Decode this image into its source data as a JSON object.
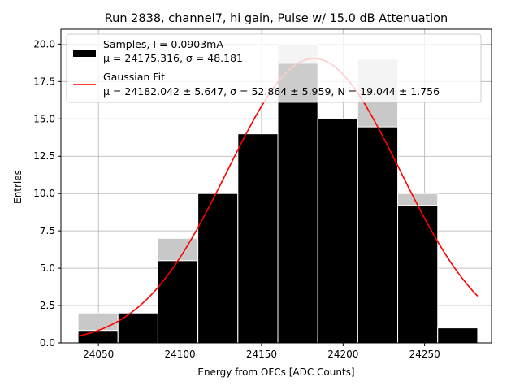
{
  "chart_data": {
    "type": "bar",
    "title": "Run 2838, channel7, hi gain, Pulse w/ 15.0 dB Attenuation",
    "xlabel": "Energy from OFCs [ADC Counts]",
    "ylabel": "Entries",
    "xlim": [
      24027,
      24291
    ],
    "ylim": [
      0,
      21
    ],
    "x_ticks": [
      24050,
      24100,
      24150,
      24200,
      24250
    ],
    "x_tick_labels": [
      "24050",
      "24100",
      "24150",
      "24200",
      "24250"
    ],
    "y_ticks": [
      0,
      2.5,
      5,
      7.5,
      10,
      12.5,
      15,
      17.5,
      20
    ],
    "y_tick_labels": [
      "0.0",
      "2.5",
      "5.0",
      "7.5",
      "10.0",
      "12.5",
      "15.0",
      "17.5",
      "20.0"
    ],
    "grid": true,
    "legend_position": "top-left",
    "bin_edges": [
      24037.5,
      24062.0,
      24086.5,
      24111.0,
      24135.5,
      24160.0,
      24184.5,
      24209.0,
      24233.5,
      24258.0,
      24282.5
    ],
    "series": [
      {
        "name": "Samples, I = 0.0903mA",
        "name_line2": "μ = 24175.316, σ = 48.181",
        "kind": "histogram",
        "values": [
          2,
          2,
          7,
          10,
          14,
          20,
          15,
          19,
          10,
          1
        ],
        "color": "#000000",
        "overlap_color": "#c8c8c8"
      },
      {
        "name": "Gaussian Fit",
        "name_line2": "μ = 24182.042 ± 5.647, σ = 52.864 ± 5.959, N = 19.044 ± 1.756",
        "kind": "line",
        "color": "#ff0000",
        "x_range": [
          24037.5,
          24282.5
        ],
        "mu": 24182.042,
        "sigma": 52.864,
        "amplitude": 19.044
      }
    ]
  }
}
